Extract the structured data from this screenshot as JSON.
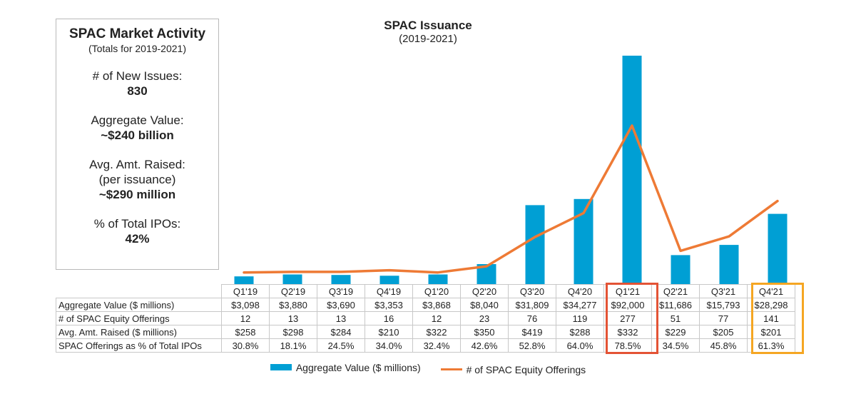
{
  "summary_box": {
    "title": "SPAC Market Activity",
    "subtitle": "(Totals for 2019-2021)",
    "stats": [
      {
        "label": "# of New Issues:",
        "note": "",
        "value": "830"
      },
      {
        "label": "Aggregate Value:",
        "note": "",
        "value": "~$240 billion"
      },
      {
        "label": "Avg. Amt. Raised:",
        "note": "(per issuance)",
        "value": "~$290 million"
      },
      {
        "label": "% of Total IPOs:",
        "note": "",
        "value": "42%"
      }
    ]
  },
  "colors": {
    "bar": "#009fd4",
    "line": "#ee7a35",
    "highlight_q1_21": "#e35335",
    "highlight_q4_21": "#f5a623"
  },
  "chart_data": {
    "type": "bar",
    "title": "SPAC Issuance",
    "subtitle": "(2019-2021)",
    "categories": [
      "Q1'19",
      "Q2'19",
      "Q3'19",
      "Q4'19",
      "Q1'20",
      "Q2'20",
      "Q3'20",
      "Q4'20",
      "Q1'21",
      "Q2'21",
      "Q3'21",
      "Q4'21"
    ],
    "series": [
      {
        "name": "Aggregate Value ($ millions)",
        "type": "bar",
        "values": [
          3098,
          3880,
          3690,
          3353,
          3868,
          8040,
          31809,
          34277,
          92000,
          11686,
          15793,
          28298
        ]
      },
      {
        "name": "# of SPAC Equity Offerings",
        "type": "line",
        "values": [
          12,
          13,
          13,
          16,
          12,
          23,
          76,
          119,
          277,
          51,
          77,
          141
        ]
      }
    ],
    "table": {
      "rows": [
        {
          "label": "Aggregate Value ($ millions)",
          "cells": [
            "$3,098",
            "$3,880",
            "$3,690",
            "$3,353",
            "$3,868",
            "$8,040",
            "$31,809",
            "$34,277",
            "$92,000",
            "$11,686",
            "$15,793",
            "$28,298"
          ]
        },
        {
          "label": "# of SPAC Equity Offerings",
          "cells": [
            "12",
            "13",
            "13",
            "16",
            "12",
            "23",
            "76",
            "119",
            "277",
            "51",
            "77",
            "141"
          ]
        },
        {
          "label": "Avg. Amt. Raised ($ millions)",
          "cells": [
            "$258",
            "$298",
            "$284",
            "$210",
            "$322",
            "$350",
            "$419",
            "$288",
            "$332",
            "$229",
            "$205",
            "$201"
          ]
        },
        {
          "label": "SPAC Offerings as % of Total IPOs",
          "cells": [
            "30.8%",
            "18.1%",
            "24.5%",
            "34.0%",
            "32.4%",
            "42.6%",
            "52.8%",
            "64.0%",
            "78.5%",
            "34.5%",
            "45.8%",
            "61.3%"
          ]
        }
      ]
    },
    "highlighted_categories": [
      "Q1'21",
      "Q4'21"
    ],
    "legend_position": "bottom",
    "grid": false
  }
}
